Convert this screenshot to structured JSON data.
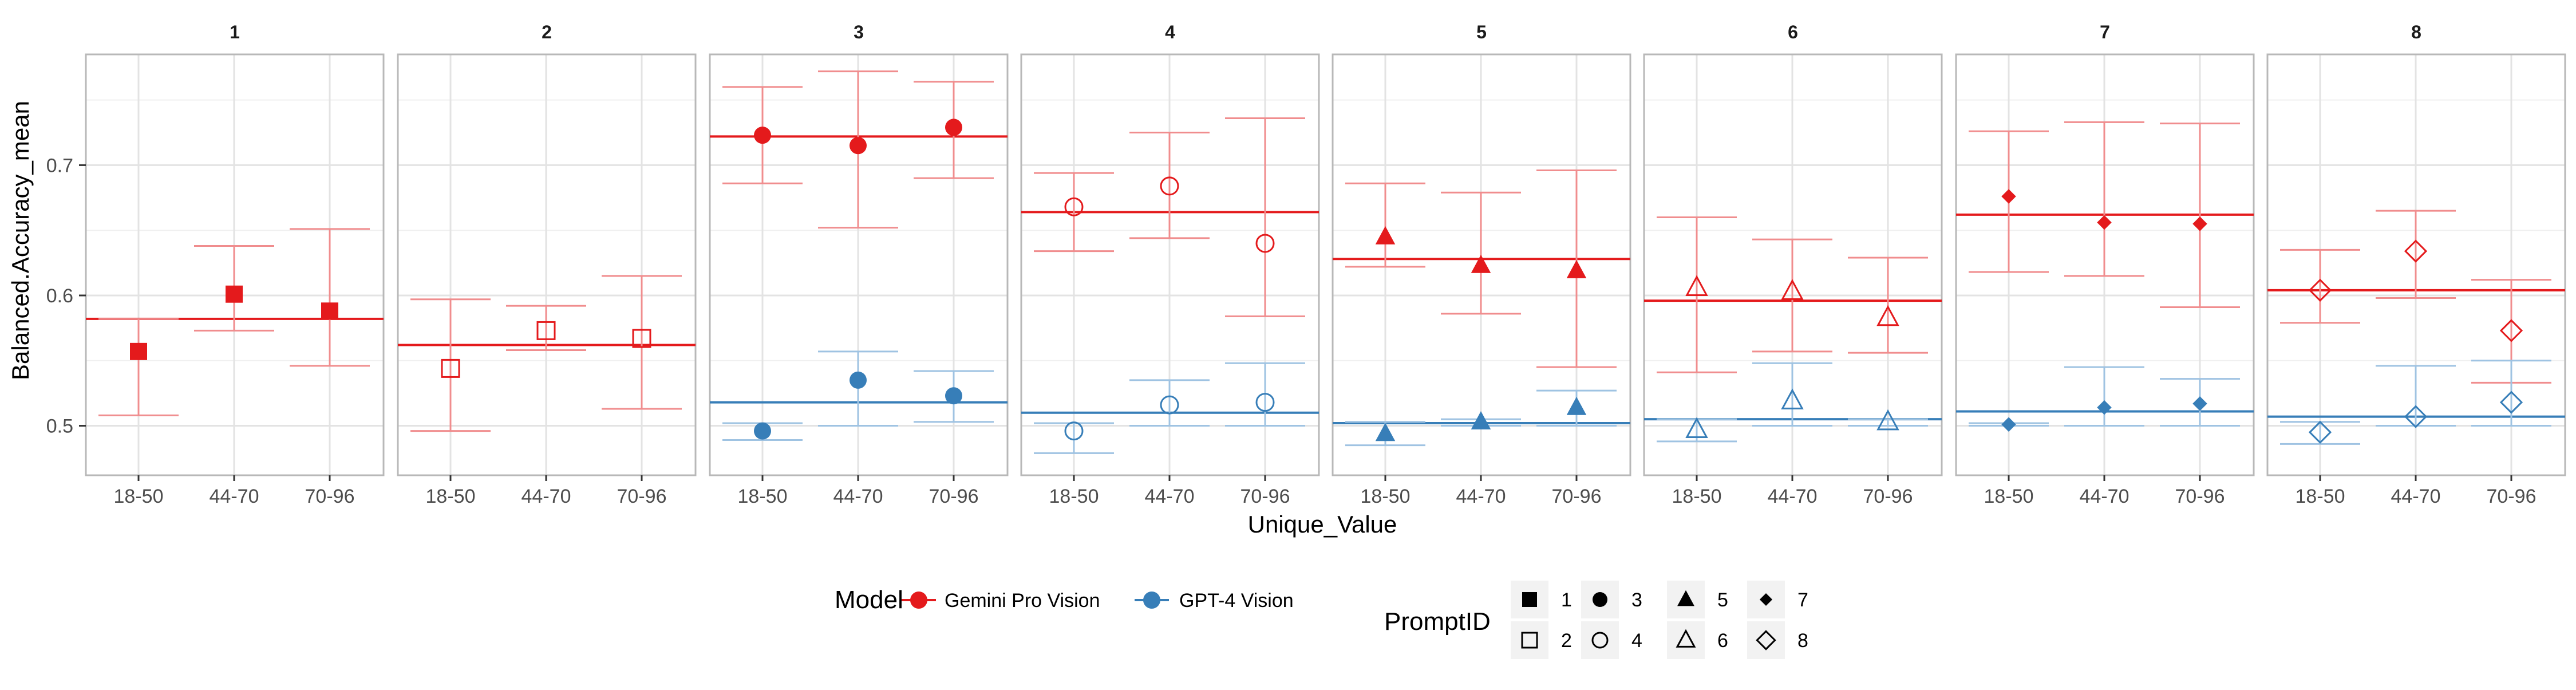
{
  "chart_data": {
    "type": "scatter",
    "facet_variable": "PromptID",
    "facets": [
      "1",
      "2",
      "3",
      "4",
      "5",
      "6",
      "7",
      "8"
    ],
    "categories": [
      "18-50",
      "44-70",
      "70-96"
    ],
    "xlabel": "Unique_Value",
    "ylabel": "Balanced.Accuracy_mean",
    "ylim": [
      0.462,
      0.785
    ],
    "yticks": [
      0.5,
      0.6,
      0.7
    ],
    "ytick_labels": [
      "0.5 -",
      "0.6 -",
      "0.7 -"
    ],
    "grid": true,
    "legend_position": "bottom",
    "colors": {
      "Gemini Pro Vision": "#e41a1c",
      "GPT-4 Vision": "#377eb8"
    },
    "series": [
      {
        "name": "Gemini Pro Vision",
        "panels": [
          {
            "prompt": "1",
            "mean_line": 0.582,
            "values": [
              0.557,
              0.601,
              0.588
            ],
            "lower": [
              0.508,
              0.573,
              0.546
            ],
            "upper": [
              0.582,
              0.638,
              0.651
            ]
          },
          {
            "prompt": "2",
            "mean_line": 0.562,
            "values": [
              0.544,
              0.573,
              0.567
            ],
            "lower": [
              0.496,
              0.558,
              0.513
            ],
            "upper": [
              0.597,
              0.592,
              0.615
            ]
          },
          {
            "prompt": "3",
            "mean_line": 0.722,
            "values": [
              0.723,
              0.715,
              0.729
            ],
            "lower": [
              0.686,
              0.652,
              0.69
            ],
            "upper": [
              0.76,
              0.772,
              0.764
            ]
          },
          {
            "prompt": "4",
            "mean_line": 0.664,
            "values": [
              0.668,
              0.684,
              0.64
            ],
            "lower": [
              0.634,
              0.644,
              0.584
            ],
            "upper": [
              0.694,
              0.725,
              0.736
            ]
          },
          {
            "prompt": "5",
            "mean_line": 0.628,
            "values": [
              0.645,
              0.623,
              0.619
            ],
            "lower": [
              0.622,
              0.586,
              0.545
            ],
            "upper": [
              0.686,
              0.679,
              0.696
            ]
          },
          {
            "prompt": "6",
            "mean_line": 0.596,
            "values": [
              0.606,
              0.603,
              0.583
            ],
            "lower": [
              0.541,
              0.557,
              0.556
            ],
            "upper": [
              0.66,
              0.643,
              0.629
            ]
          },
          {
            "prompt": "7",
            "mean_line": 0.662,
            "values": [
              0.676,
              0.656,
              0.655
            ],
            "lower": [
              0.618,
              0.615,
              0.591
            ],
            "upper": [
              0.726,
              0.733,
              0.732
            ]
          },
          {
            "prompt": "8",
            "mean_line": 0.604,
            "values": [
              0.604,
              0.634,
              0.573
            ],
            "lower": [
              0.579,
              0.598,
              0.533
            ],
            "upper": [
              0.635,
              0.665,
              0.612
            ]
          }
        ]
      },
      {
        "name": "GPT-4 Vision",
        "panels": [
          {
            "prompt": "3",
            "mean_line": 0.518,
            "values": [
              0.496,
              0.535,
              0.523
            ],
            "lower": [
              0.489,
              0.5,
              0.503
            ],
            "upper": [
              0.502,
              0.557,
              0.542
            ]
          },
          {
            "prompt": "4",
            "mean_line": 0.51,
            "values": [
              0.496,
              0.516,
              0.518
            ],
            "lower": [
              0.479,
              0.5,
              0.5
            ],
            "upper": [
              0.502,
              0.535,
              0.548
            ]
          },
          {
            "prompt": "5",
            "mean_line": 0.502,
            "values": [
              0.494,
              0.503,
              0.514
            ],
            "lower": [
              0.485,
              0.5,
              0.5
            ],
            "upper": [
              0.503,
              0.505,
              0.527
            ]
          },
          {
            "prompt": "6",
            "mean_line": 0.505,
            "values": [
              0.497,
              0.519,
              0.503
            ],
            "lower": [
              0.488,
              0.5,
              0.5
            ],
            "upper": [
              0.505,
              0.548,
              0.505
            ]
          },
          {
            "prompt": "7",
            "mean_line": 0.511,
            "values": [
              0.501,
              0.514,
              0.517
            ],
            "lower": [
              0.5,
              0.5,
              0.5
            ],
            "upper": [
              0.502,
              0.545,
              0.536
            ]
          },
          {
            "prompt": "8",
            "mean_line": 0.507,
            "values": [
              0.495,
              0.507,
              0.518
            ],
            "lower": [
              0.486,
              0.5,
              0.5
            ],
            "upper": [
              0.503,
              0.546,
              0.55
            ]
          }
        ]
      }
    ],
    "shapes_by_prompt": {
      "1": "filled-square",
      "2": "open-square",
      "3": "filled-circle",
      "4": "open-circle",
      "5": "filled-triangle",
      "6": "open-triangle",
      "7": "filled-diamond",
      "8": "open-diamond"
    },
    "legend": {
      "model_title": "Model",
      "model_entries": [
        "Gemini Pro Vision",
        "GPT-4 Vision"
      ],
      "prompt_title": "PromptID",
      "prompt_entries": [
        "1",
        "2",
        "3",
        "4",
        "5",
        "6",
        "7",
        "8"
      ]
    }
  }
}
